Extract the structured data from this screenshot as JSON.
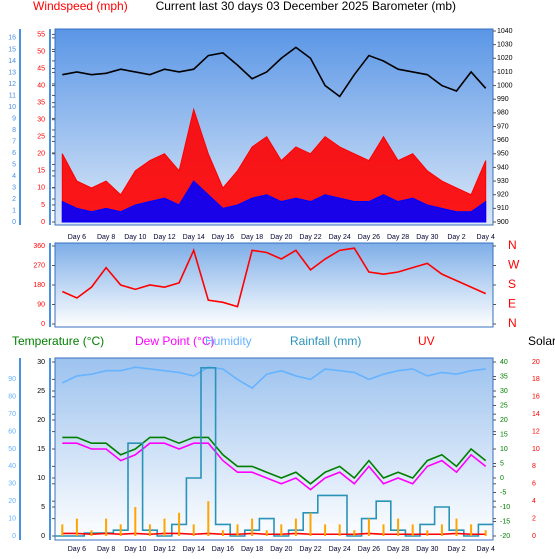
{
  "chart_data": [
    {
      "type": "area",
      "title": "Current last 30 days 03 December 2025",
      "ylabel": "Windspeed (mph)",
      "y2label": "Barometer (mb)",
      "categories": [
        null,
        "Day 6",
        null,
        "Day 8",
        null,
        "Day 10",
        null,
        "Day 12",
        null,
        "Day 14",
        null,
        "Day 16",
        null,
        "Day 18",
        null,
        "Day 20",
        null,
        "Day 22",
        null,
        "Day 24",
        null,
        "Day 26",
        null,
        "Day 28",
        null,
        "Day 30",
        null,
        "Day 2",
        null,
        "Day 4"
      ],
      "series": [
        {
          "color": "#ff0000",
          "values": [
            20,
            12,
            10,
            12,
            8,
            15,
            18,
            20,
            15,
            33,
            20,
            10,
            15,
            22,
            25,
            18,
            22,
            20,
            25,
            22,
            20,
            18,
            25,
            18,
            20,
            15,
            12,
            10,
            8,
            18
          ]
        },
        {
          "color": "#0000ff",
          "values": [
            6,
            4,
            3,
            4,
            3,
            5,
            6,
            7,
            5,
            12,
            8,
            4,
            5,
            7,
            8,
            6,
            7,
            6,
            8,
            7,
            6,
            6,
            8,
            6,
            7,
            5,
            4,
            3,
            3,
            6
          ]
        },
        {
          "color": "#000000",
          "axis": "y2",
          "type": "line",
          "values": [
            1008,
            1010,
            1008,
            1009,
            1012,
            1010,
            1008,
            1012,
            1010,
            1012,
            1022,
            1024,
            1015,
            1005,
            1010,
            1020,
            1028,
            1020,
            1000,
            992,
            1008,
            1022,
            1018,
            1012,
            1010,
            1008,
            1000,
            996,
            1010,
            998
          ]
        }
      ],
      "ylim": [
        0,
        56
      ],
      "yticks": [
        0,
        5,
        10,
        15,
        20,
        25,
        30,
        35,
        40,
        45,
        50,
        55
      ],
      "y2lim": [
        900,
        1040
      ],
      "y2ticks": [
        900,
        910,
        920,
        930,
        940,
        950,
        960,
        970,
        980,
        990,
        1000,
        1010,
        1020,
        1030,
        1040
      ],
      "y3lim": [
        0,
        16.6
      ],
      "y3ticks": [
        0,
        1,
        2,
        3,
        4,
        5,
        6,
        7,
        8,
        9,
        10,
        11,
        12,
        13,
        14,
        15,
        16
      ]
    },
    {
      "type": "line",
      "series": [
        {
          "color": "#ff0000",
          "values": [
            150,
            120,
            170,
            260,
            180,
            160,
            180,
            170,
            190,
            340,
            110,
            100,
            80,
            340,
            330,
            300,
            340,
            250,
            300,
            340,
            350,
            240,
            230,
            240,
            260,
            280,
            230,
            200,
            170,
            140
          ]
        }
      ],
      "ylim": [
        0,
        360
      ],
      "yticks": [
        0,
        90,
        180,
        270,
        360
      ],
      "y2lim": [
        0,
        360
      ],
      "y2ticks": [
        {
          "value": 0,
          "label": "N"
        },
        {
          "value": 90,
          "label": "E"
        },
        {
          "value": 180,
          "label": "S"
        },
        {
          "value": 270,
          "label": "W"
        },
        {
          "value": 360,
          "label": "N"
        }
      ]
    },
    {
      "type": "line",
      "categories": [
        null,
        "Day 6",
        null,
        "Day 8",
        null,
        "Day 10",
        null,
        "Day 12",
        null,
        "Day 14",
        null,
        "Day 16",
        null,
        "Day 18",
        null,
        "Day 20",
        null,
        "Day 22",
        null,
        "Day 24",
        null,
        "Day 26",
        null,
        "Day 28",
        null,
        "Day 30",
        null,
        "Day 2",
        null,
        "Day 4"
      ],
      "series": [
        {
          "name": "Temperature (°C)",
          "color": "#008000",
          "axis": "y",
          "values": [
            17,
            17,
            16,
            16,
            14,
            15,
            17,
            17,
            16,
            17,
            17,
            14,
            12,
            12,
            11,
            10,
            11,
            9,
            11,
            12,
            10,
            13,
            10,
            11,
            10,
            13,
            14,
            12,
            15,
            13
          ]
        },
        {
          "name": "Dew Point (°C)",
          "color": "#ff00ff",
          "axis": "y",
          "values": [
            16,
            16,
            15,
            15,
            13,
            14,
            16,
            16,
            15,
            16,
            16,
            13,
            11,
            11,
            10,
            9,
            10,
            8,
            10,
            11,
            9,
            12,
            9,
            10,
            9,
            12,
            13,
            11,
            14,
            12
          ]
        },
        {
          "name": "Humidity",
          "color": "#66b3ff",
          "axis": "y3",
          "values": [
            88,
            92,
            93,
            95,
            95,
            97,
            96,
            95,
            94,
            92,
            97,
            96,
            90,
            85,
            93,
            95,
            92,
            90,
            96,
            95,
            94,
            90,
            93,
            95,
            96,
            92,
            94,
            93,
            95,
            96
          ]
        },
        {
          "name": "Rainfall (mm)",
          "color": "#2a93b8",
          "axis": "y",
          "type": "step",
          "values": [
            0,
            0,
            0.5,
            0.5,
            1,
            16,
            1,
            0,
            2,
            10,
            29,
            2,
            0,
            1,
            3,
            0,
            1,
            4,
            7,
            7,
            0,
            3,
            6,
            1,
            0,
            2,
            5,
            1,
            0,
            2
          ]
        },
        {
          "name": "UV",
          "color": "#ff0000",
          "axis": "y4",
          "values": [
            0.3,
            0.3,
            0.2,
            0.3,
            0.2,
            0.3,
            0.2,
            0.3,
            0.3,
            0.2,
            0.3,
            0.2,
            0.2,
            0.3,
            0.2,
            0.2,
            0.3,
            0.2,
            0.2,
            0.2,
            0.2,
            0.3,
            0.2,
            0.2,
            0.2,
            0.2,
            0.2,
            0.3,
            0.2,
            0.2
          ]
        },
        {
          "name": "Solar",
          "color": "#ffa500",
          "label_color": "#000000",
          "axis": "y",
          "type": "bar",
          "values": [
            2,
            3,
            1,
            3,
            2,
            5,
            2,
            3,
            4,
            2,
            6,
            1,
            2,
            3,
            1,
            2,
            3,
            4,
            2,
            2,
            1,
            3,
            2,
            3,
            2,
            1,
            2,
            3,
            2,
            1
          ]
        }
      ],
      "ylim": [
        0,
        30
      ],
      "yticks": [
        0,
        5,
        10,
        15,
        20,
        25,
        30
      ],
      "y2lim": [
        -20,
        40
      ],
      "y2ticks": [
        -20,
        -15,
        -10,
        -5,
        0,
        5,
        10,
        15,
        20,
        25,
        30,
        35,
        40
      ],
      "y3lim": [
        0,
        100
      ],
      "y3ticks": [
        0,
        10,
        20,
        30,
        40,
        50,
        60,
        70,
        80,
        90
      ],
      "y4lim": [
        0,
        20
      ],
      "y4ticks": [
        0,
        2,
        4,
        6,
        8,
        10,
        12,
        14,
        16,
        18,
        20
      ]
    }
  ]
}
